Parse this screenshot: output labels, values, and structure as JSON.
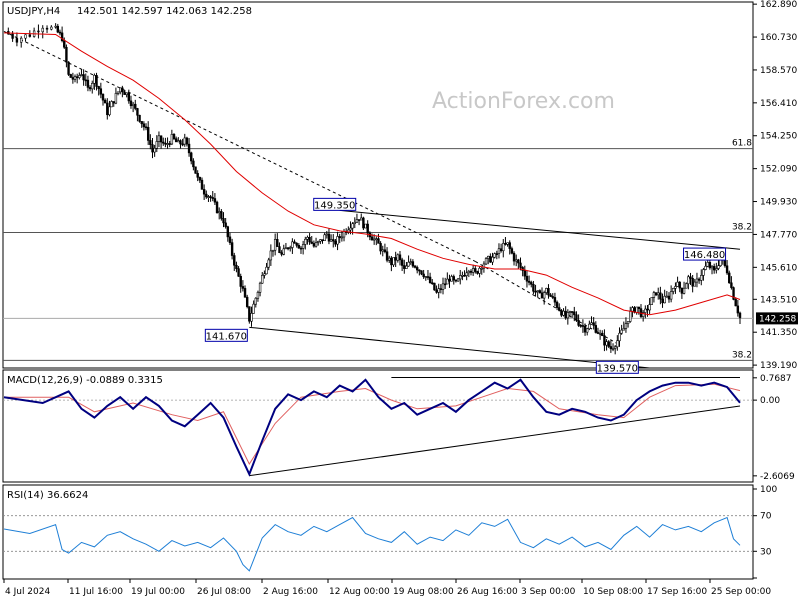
{
  "watermark": "ActionForex.com",
  "chart_data": [
    {
      "type": "candlestick",
      "symbol_label": "USDJPY,H4",
      "ohlc_label": "142.501 142.597 142.063 142.258",
      "last_price": 142.258,
      "last_price_label": "142.258",
      "yticks": [
        139.19,
        141.35,
        143.51,
        145.61,
        147.77,
        149.93,
        152.09,
        154.25,
        156.41,
        158.57,
        160.73,
        162.89
      ],
      "ytick_labels": [
        "139.190",
        "141.350",
        "143.510",
        "145.610",
        "147.770",
        "149.930",
        "152.090",
        "154.250",
        "156.410",
        "158.570",
        "160.730",
        "162.890"
      ],
      "ylim": [
        139.0,
        162.9
      ],
      "xtick_labels": [
        "4 Jul 2024",
        "11 Jul 16:00",
        "19 Jul 00:00",
        "26 Jul 08:00",
        "2 Aug 16:00",
        "12 Aug 00:00",
        "19 Aug 08:00",
        "26 Aug 16:00",
        "3 Sep 00:00",
        "10 Sep 08:00",
        "17 Sep 16:00",
        "25 Sep 00:00"
      ],
      "fib_levels": [
        {
          "label": "61.8",
          "value": 153.4
        },
        {
          "label": "38.2",
          "value": 147.9
        },
        {
          "label": "38.2",
          "value": 139.5
        }
      ],
      "horizontal_line": 142.258,
      "annotations": [
        {
          "label": "149.350",
          "value": 149.35
        },
        {
          "label": "141.670",
          "value": 141.67
        },
        {
          "label": "139.570",
          "value": 139.57
        },
        {
          "label": "146.480",
          "value": 146.48
        }
      ],
      "close_path": [
        [
          0,
          161.1
        ],
        [
          2,
          160.6
        ],
        [
          4,
          160.9
        ],
        [
          6,
          161.5
        ],
        [
          8,
          161.2
        ],
        [
          9,
          160.7
        ],
        [
          10,
          158.2
        ],
        [
          11,
          157.9
        ],
        [
          12,
          158.4
        ],
        [
          13,
          157.3
        ],
        [
          14,
          158.1
        ],
        [
          15,
          157.0
        ],
        [
          16,
          155.8
        ],
        [
          17,
          156.6
        ],
        [
          18,
          157.4
        ],
        [
          19,
          157.0
        ],
        [
          20,
          156.2
        ],
        [
          21,
          155.4
        ],
        [
          22,
          154.6
        ],
        [
          23,
          153.2
        ],
        [
          24,
          154.0
        ],
        [
          25,
          153.6
        ],
        [
          26,
          154.1
        ],
        [
          27,
          153.7
        ],
        [
          28,
          153.9
        ],
        [
          29,
          152.8
        ],
        [
          30,
          151.4
        ],
        [
          31,
          150.6
        ],
        [
          32,
          150.2
        ],
        [
          33,
          149.4
        ],
        [
          34,
          148.7
        ],
        [
          35,
          147.0
        ],
        [
          36,
          145.4
        ],
        [
          37,
          144.1
        ],
        [
          38,
          142.2
        ],
        [
          39,
          143.6
        ],
        [
          40,
          145.0
        ],
        [
          41,
          146.3
        ],
        [
          42,
          147.2
        ],
        [
          43,
          146.4
        ],
        [
          44,
          147.0
        ],
        [
          45,
          147.4
        ],
        [
          46,
          146.9
        ],
        [
          47,
          147.6
        ],
        [
          48,
          147.0
        ],
        [
          49,
          147.3
        ],
        [
          50,
          147.8
        ],
        [
          51,
          147.1
        ],
        [
          52,
          147.6
        ],
        [
          53,
          148.1
        ],
        [
          54,
          148.6
        ],
        [
          55,
          148.9
        ],
        [
          56,
          148.2
        ],
        [
          57,
          147.6
        ],
        [
          58,
          147.1
        ],
        [
          59,
          146.4
        ],
        [
          60,
          145.9
        ],
        [
          61,
          146.3
        ],
        [
          62,
          145.4
        ],
        [
          63,
          146.0
        ],
        [
          64,
          145.6
        ],
        [
          65,
          145.2
        ],
        [
          66,
          144.6
        ],
        [
          67,
          143.9
        ],
        [
          68,
          144.4
        ],
        [
          69,
          144.9
        ],
        [
          70,
          144.5
        ],
        [
          71,
          145.1
        ],
        [
          72,
          145.6
        ],
        [
          73,
          145.2
        ],
        [
          74,
          145.8
        ],
        [
          75,
          146.1
        ],
        [
          76,
          146.3
        ],
        [
          77,
          146.9
        ],
        [
          78,
          147.1
        ],
        [
          79,
          146.2
        ],
        [
          80,
          145.6
        ],
        [
          81,
          144.9
        ],
        [
          82,
          144.2
        ],
        [
          83,
          143.7
        ],
        [
          84,
          144.1
        ],
        [
          85,
          143.5
        ],
        [
          86,
          142.9
        ],
        [
          87,
          142.3
        ],
        [
          88,
          142.6
        ],
        [
          89,
          142.0
        ],
        [
          90,
          141.6
        ],
        [
          91,
          141.9
        ],
        [
          92,
          141.4
        ],
        [
          93,
          140.7
        ],
        [
          94,
          140.3
        ],
        [
          95,
          140.8
        ],
        [
          96,
          141.6
        ],
        [
          97,
          142.6
        ],
        [
          98,
          143.0
        ],
        [
          99,
          142.4
        ],
        [
          100,
          143.2
        ],
        [
          101,
          144.0
        ],
        [
          102,
          143.4
        ],
        [
          103,
          143.7
        ],
        [
          104,
          144.6
        ],
        [
          105,
          144.1
        ],
        [
          106,
          144.9
        ],
        [
          107,
          144.4
        ],
        [
          108,
          145.2
        ],
        [
          109,
          145.8
        ],
        [
          110,
          145.3
        ],
        [
          111,
          146.2
        ],
        [
          112,
          145.4
        ],
        [
          113,
          143.7
        ],
        [
          114,
          142.3
        ]
      ],
      "ma_path": [
        [
          0,
          161.0
        ],
        [
          8,
          160.9
        ],
        [
          12,
          159.8
        ],
        [
          16,
          158.8
        ],
        [
          20,
          157.9
        ],
        [
          24,
          156.7
        ],
        [
          28,
          155.3
        ],
        [
          32,
          153.7
        ],
        [
          36,
          151.9
        ],
        [
          40,
          150.5
        ],
        [
          44,
          149.3
        ],
        [
          48,
          148.4
        ],
        [
          52,
          148.0
        ],
        [
          56,
          147.8
        ],
        [
          60,
          147.5
        ],
        [
          64,
          146.8
        ],
        [
          68,
          146.2
        ],
        [
          72,
          145.8
        ],
        [
          76,
          145.5
        ],
        [
          80,
          145.5
        ],
        [
          84,
          145.1
        ],
        [
          88,
          144.3
        ],
        [
          92,
          143.6
        ],
        [
          96,
          142.8
        ],
        [
          100,
          142.5
        ],
        [
          104,
          142.8
        ],
        [
          108,
          143.3
        ],
        [
          112,
          143.8
        ],
        [
          114,
          143.5
        ]
      ]
    },
    {
      "type": "line",
      "label": "MACD(12,26,9) -0.0889 0.3315",
      "yticks": [
        0.7687,
        0.0,
        -2.6069
      ],
      "ytick_labels": [
        "0.7687",
        "0.00",
        "-2.6069"
      ],
      "ylim": [
        -2.75,
        0.9
      ],
      "macd": [
        [
          0,
          0.1
        ],
        [
          6,
          -0.1
        ],
        [
          10,
          0.3
        ],
        [
          12,
          -0.3
        ],
        [
          14,
          -0.6
        ],
        [
          16,
          -0.2
        ],
        [
          18,
          0.1
        ],
        [
          20,
          -0.3
        ],
        [
          22,
          0.1
        ],
        [
          24,
          -0.2
        ],
        [
          26,
          -0.7
        ],
        [
          28,
          -0.9
        ],
        [
          30,
          -0.5
        ],
        [
          32,
          -0.1
        ],
        [
          34,
          -0.6
        ],
        [
          36,
          -1.6
        ],
        [
          38,
          -2.55
        ],
        [
          40,
          -1.4
        ],
        [
          42,
          -0.3
        ],
        [
          44,
          0.2
        ],
        [
          46,
          0.0
        ],
        [
          48,
          0.3
        ],
        [
          50,
          0.1
        ],
        [
          52,
          0.5
        ],
        [
          54,
          0.3
        ],
        [
          56,
          0.7
        ],
        [
          58,
          0.1
        ],
        [
          60,
          -0.3
        ],
        [
          62,
          -0.1
        ],
        [
          64,
          -0.5
        ],
        [
          66,
          -0.3
        ],
        [
          68,
          -0.1
        ],
        [
          70,
          -0.4
        ],
        [
          72,
          0.0
        ],
        [
          74,
          0.3
        ],
        [
          76,
          0.6
        ],
        [
          78,
          0.4
        ],
        [
          80,
          0.7
        ],
        [
          82,
          0.1
        ],
        [
          84,
          -0.4
        ],
        [
          86,
          -0.5
        ],
        [
          88,
          -0.3
        ],
        [
          90,
          -0.4
        ],
        [
          92,
          -0.6
        ],
        [
          94,
          -0.7
        ],
        [
          96,
          -0.5
        ],
        [
          98,
          0.0
        ],
        [
          100,
          0.3
        ],
        [
          102,
          0.5
        ],
        [
          104,
          0.6
        ],
        [
          106,
          0.6
        ],
        [
          108,
          0.5
        ],
        [
          110,
          0.6
        ],
        [
          112,
          0.45
        ],
        [
          114,
          -0.09
        ]
      ],
      "signal": [
        [
          0,
          0.1
        ],
        [
          10,
          0.1
        ],
        [
          14,
          -0.4
        ],
        [
          20,
          -0.1
        ],
        [
          26,
          -0.5
        ],
        [
          30,
          -0.7
        ],
        [
          34,
          -0.4
        ],
        [
          38,
          -2.2
        ],
        [
          42,
          -0.8
        ],
        [
          46,
          0.1
        ],
        [
          52,
          0.3
        ],
        [
          56,
          0.4
        ],
        [
          60,
          0.0
        ],
        [
          64,
          -0.3
        ],
        [
          70,
          -0.2
        ],
        [
          74,
          0.1
        ],
        [
          78,
          0.4
        ],
        [
          82,
          0.3
        ],
        [
          86,
          -0.3
        ],
        [
          92,
          -0.5
        ],
        [
          96,
          -0.6
        ],
        [
          100,
          0.1
        ],
        [
          104,
          0.5
        ],
        [
          110,
          0.55
        ],
        [
          114,
          0.33
        ]
      ],
      "trendline": [
        [
          38,
          -2.6
        ],
        [
          114,
          -0.2
        ]
      ]
    },
    {
      "type": "line",
      "label": "RSI(14) 36.6624",
      "yticks": [
        100,
        70,
        30,
        0
      ],
      "ytick_labels": [
        "100",
        "70",
        "30",
        "0"
      ],
      "ylim": [
        0,
        100
      ],
      "rsi": [
        [
          0,
          55
        ],
        [
          4,
          50
        ],
        [
          8,
          60
        ],
        [
          9,
          32
        ],
        [
          10,
          28
        ],
        [
          12,
          40
        ],
        [
          14,
          35
        ],
        [
          16,
          48
        ],
        [
          18,
          52
        ],
        [
          20,
          44
        ],
        [
          22,
          38
        ],
        [
          24,
          30
        ],
        [
          26,
          42
        ],
        [
          28,
          36
        ],
        [
          30,
          40
        ],
        [
          32,
          34
        ],
        [
          34,
          45
        ],
        [
          36,
          30
        ],
        [
          37,
          15
        ],
        [
          38,
          8
        ],
        [
          40,
          45
        ],
        [
          42,
          60
        ],
        [
          44,
          52
        ],
        [
          46,
          48
        ],
        [
          48,
          58
        ],
        [
          50,
          52
        ],
        [
          52,
          60
        ],
        [
          54,
          68
        ],
        [
          56,
          50
        ],
        [
          58,
          44
        ],
        [
          60,
          40
        ],
        [
          62,
          52
        ],
        [
          64,
          38
        ],
        [
          66,
          46
        ],
        [
          68,
          42
        ],
        [
          70,
          54
        ],
        [
          72,
          48
        ],
        [
          74,
          62
        ],
        [
          76,
          58
        ],
        [
          78,
          66
        ],
        [
          80,
          40
        ],
        [
          82,
          34
        ],
        [
          84,
          44
        ],
        [
          86,
          38
        ],
        [
          88,
          46
        ],
        [
          90,
          35
        ],
        [
          92,
          40
        ],
        [
          94,
          32
        ],
        [
          96,
          48
        ],
        [
          98,
          58
        ],
        [
          100,
          46
        ],
        [
          102,
          60
        ],
        [
          104,
          54
        ],
        [
          106,
          58
        ],
        [
          108,
          52
        ],
        [
          110,
          62
        ],
        [
          112,
          68
        ],
        [
          113,
          44
        ],
        [
          114,
          36.7
        ]
      ]
    }
  ]
}
